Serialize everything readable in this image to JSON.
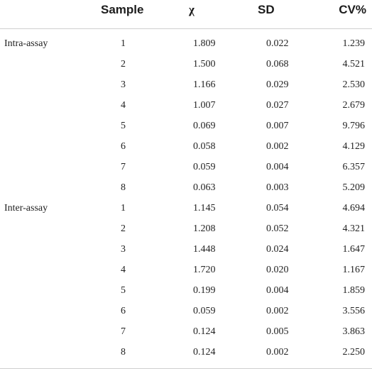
{
  "header": {
    "sample": "Sample",
    "chi": "χ",
    "sd": "SD",
    "cv": "CV%"
  },
  "rows": [
    {
      "group": "Intra-assay",
      "sample": "1",
      "chi": "1.809",
      "sd": "0.022",
      "cv": "1.239"
    },
    {
      "group": "",
      "sample": "2",
      "chi": "1.500",
      "sd": "0.068",
      "cv": "4.521"
    },
    {
      "group": "",
      "sample": "3",
      "chi": "1.166",
      "sd": "0.029",
      "cv": "2.530"
    },
    {
      "group": "",
      "sample": "4",
      "chi": "1.007",
      "sd": "0.027",
      "cv": "2.679"
    },
    {
      "group": "",
      "sample": "5",
      "chi": "0.069",
      "sd": "0.007",
      "cv": "9.796"
    },
    {
      "group": "",
      "sample": "6",
      "chi": "0.058",
      "sd": "0.002",
      "cv": "4.129"
    },
    {
      "group": "",
      "sample": "7",
      "chi": "0.059",
      "sd": "0.004",
      "cv": "6.357"
    },
    {
      "group": "",
      "sample": "8",
      "chi": "0.063",
      "sd": "0.003",
      "cv": "5.209"
    },
    {
      "group": "Inter-assay",
      "sample": "1",
      "chi": "1.145",
      "sd": "0.054",
      "cv": "4.694"
    },
    {
      "group": "",
      "sample": "2",
      "chi": "1.208",
      "sd": "0.052",
      "cv": "4.321"
    },
    {
      "group": "",
      "sample": "3",
      "chi": "1.448",
      "sd": "0.024",
      "cv": "1.647"
    },
    {
      "group": "",
      "sample": "4",
      "chi": "1.720",
      "sd": "0.020",
      "cv": "1.167"
    },
    {
      "group": "",
      "sample": "5",
      "chi": "0.199",
      "sd": "0.004",
      "cv": "1.859"
    },
    {
      "group": "",
      "sample": "6",
      "chi": "0.059",
      "sd": "0.002",
      "cv": "3.556"
    },
    {
      "group": "",
      "sample": "7",
      "chi": "0.124",
      "sd": "0.005",
      "cv": "3.863"
    },
    {
      "group": "",
      "sample": "8",
      "chi": "0.124",
      "sd": "0.002",
      "cv": "2.250"
    }
  ]
}
